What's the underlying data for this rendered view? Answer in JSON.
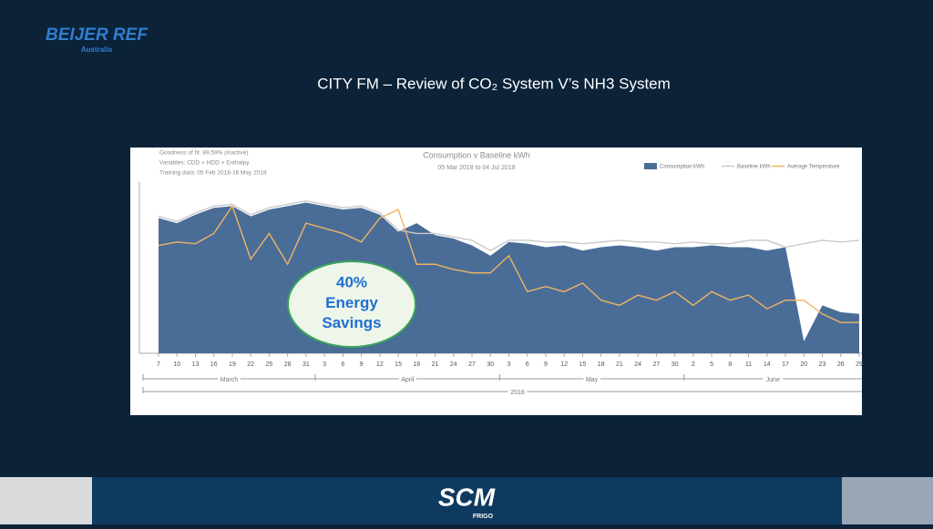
{
  "logo": {
    "brand": "BEIJER REF",
    "region": "Australia"
  },
  "heading": "CITY FM – Review of CO₂ System V’s NH3 System",
  "callout": {
    "value": "40%",
    "text": "Energy Savings"
  },
  "footer": {
    "brand": "SCM",
    "sub": "FRIGO"
  },
  "chart_data": {
    "type": "area",
    "title": "Consumption v Baseline kWh",
    "subtitle": "05 Mar 2018 to 04 Jul 2018",
    "notes": [
      "Goodness of fit: 89.59% (inactive)",
      "Variables: CDD + HDD + Enthalpy",
      "Training data: 05 Feb 2018-16 May 2018"
    ],
    "categories": [
      "7",
      "10",
      "13",
      "16",
      "19",
      "22",
      "25",
      "28",
      "31",
      "3",
      "6",
      "9",
      "12",
      "15",
      "18",
      "21",
      "24",
      "27",
      "30",
      "3",
      "6",
      "9",
      "12",
      "15",
      "18",
      "21",
      "24",
      "27",
      "30",
      "2",
      "5",
      "8",
      "11",
      "14",
      "17",
      "20",
      "23",
      "26",
      "29"
    ],
    "months": [
      "March",
      "April",
      "May",
      "June"
    ],
    "year": "2018",
    "ylim": [
      0,
      100
    ],
    "series": [
      {
        "name": "Consumption kWh",
        "color": "#4a6d98",
        "values": [
          79,
          76,
          81,
          85,
          86,
          80,
          84,
          86,
          88,
          86,
          84,
          85,
          81,
          71,
          76,
          69,
          67,
          63,
          57,
          65,
          64,
          62,
          63,
          60,
          62,
          63,
          62,
          60,
          62,
          62,
          63,
          62,
          62,
          60,
          62,
          7,
          28,
          24,
          23
        ]
      },
      {
        "name": "Baseline kWh",
        "color": "#c9c9c9",
        "values": [
          80,
          77,
          82,
          86,
          87,
          81,
          85,
          87,
          89,
          87,
          85,
          86,
          82,
          72,
          70,
          70,
          68,
          66,
          60,
          66,
          66,
          65,
          65,
          64,
          65,
          66,
          65,
          65,
          64,
          65,
          64,
          64,
          66,
          66,
          62,
          64,
          66,
          65,
          66
        ]
      },
      {
        "name": "Average Temperature",
        "color": "#f0b464",
        "values": [
          63,
          65,
          64,
          70,
          86,
          55,
          70,
          52,
          76,
          73,
          70,
          65,
          79,
          84,
          52,
          52,
          49,
          47,
          47,
          57,
          36,
          39,
          36,
          41,
          31,
          28,
          34,
          31,
          36,
          28,
          36,
          31,
          34,
          26,
          31,
          31,
          23,
          18,
          18
        ]
      }
    ],
    "legend": "top-right"
  }
}
